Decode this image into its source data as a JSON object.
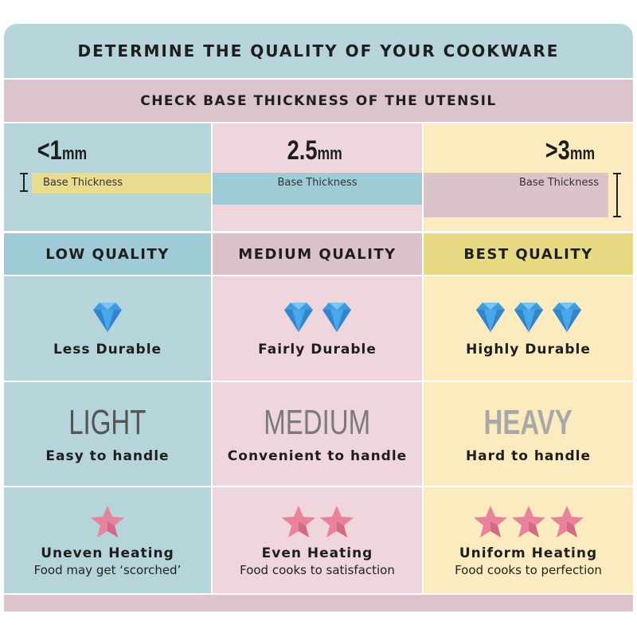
{
  "title": "DETERMINE THE QUALITY OF YOUR COOKWARE",
  "subtitle": "CHECK BASE THICKNESS OF THE UTENSIL",
  "colors": {
    "teal": "#b5d5da",
    "pink": "#efd6dc",
    "yellow": "#fdebc0",
    "diamond": "#3d9be0",
    "star": "#e9829b"
  },
  "columns": [
    {
      "prefix": "<",
      "value": "1",
      "unit": "mm",
      "bar_label": "Base Thickness",
      "quality": "LOW QUALITY",
      "diamonds": 1,
      "durability": "Less Durable",
      "weight": "LIGHT",
      "handling": "Easy to handle",
      "stars": 1,
      "heating": "Uneven Heating",
      "heating_note": "Food may get ‘scorched’"
    },
    {
      "prefix": "",
      "value": "2.5",
      "unit": "mm",
      "bar_label": "Base Thickness",
      "quality": "MEDIUM QUALITY",
      "diamonds": 2,
      "durability": "Fairly Durable",
      "weight": "MEDIUM",
      "handling": "Convenient to handle",
      "stars": 2,
      "heating": "Even Heating",
      "heating_note": "Food cooks to satisfaction"
    },
    {
      "prefix": ">",
      "value": "3",
      "unit": "mm",
      "bar_label": "Base Thickness",
      "quality": "BEST QUALITY",
      "diamonds": 3,
      "durability": "Highly Durable",
      "weight": "HEAVY",
      "handling": "Hard to handle",
      "stars": 3,
      "heating": "Uniform Heating",
      "heating_note": "Food cooks to perfection"
    }
  ]
}
